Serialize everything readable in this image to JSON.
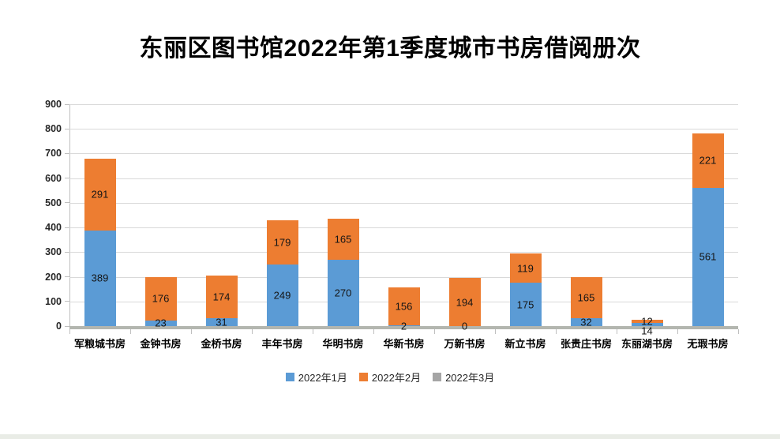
{
  "page": {
    "title": "东丽区图书馆2022年第1季度城市书房借阅册次"
  },
  "chart_data": {
    "type": "bar",
    "stacked": true,
    "title": "东丽区图书馆2022年第1季度城市书房借阅册次",
    "xlabel": "",
    "ylabel": "",
    "ylim": [
      0,
      900
    ],
    "ytick_step": 100,
    "grid": true,
    "legend_position": "bottom",
    "categories": [
      "军粮城书房",
      "金钟书房",
      "金桥书房",
      "丰年书房",
      "华明书房",
      "华新书房",
      "万新书房",
      "新立书房",
      "张贵庄书房",
      "东丽湖书房",
      "无瑕书房"
    ],
    "series": [
      {
        "name": "2022年1月",
        "color": "#5B9BD5",
        "labels_visible": true,
        "values": [
          389,
          23,
          31,
          249,
          270,
          2,
          0,
          175,
          32,
          14,
          561
        ]
      },
      {
        "name": "2022年2月",
        "color": "#ED7D31",
        "labels_visible": true,
        "values": [
          291,
          176,
          174,
          179,
          165,
          156,
          194,
          119,
          165,
          12,
          221
        ]
      },
      {
        "name": "2022年3月",
        "color": "#A5A5A5",
        "labels_visible": false,
        "values": [
          0,
          0,
          0,
          0,
          0,
          0,
          0,
          0,
          0,
          0,
          0
        ]
      }
    ]
  }
}
